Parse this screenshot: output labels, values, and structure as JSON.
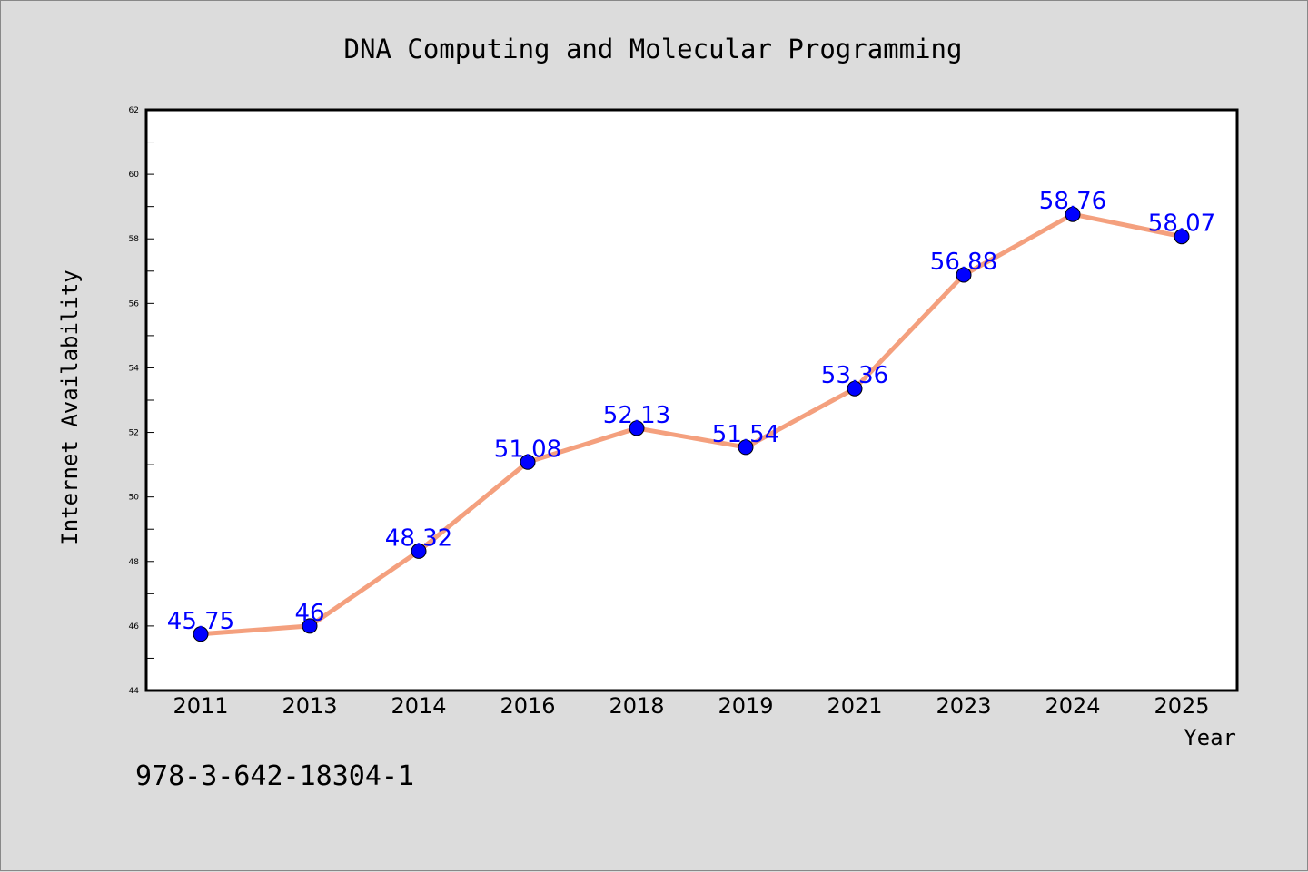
{
  "chart_data": {
    "type": "line",
    "title": "DNA Computing and Molecular Programming",
    "xlabel": "Year",
    "ylabel": "Internet Availability",
    "categories": [
      "2011",
      "2013",
      "2014",
      "2016",
      "2018",
      "2019",
      "2021",
      "2023",
      "2024",
      "2025"
    ],
    "series": [
      {
        "values": [
          45.75,
          46,
          48.32,
          51.08,
          52.13,
          51.54,
          53.36,
          56.88,
          58.76,
          58.07
        ],
        "data_labels": [
          "45.75",
          "46",
          "48.32",
          "51.08",
          "52.13",
          "51.54",
          "53.36",
          "56.88",
          "58.76",
          "58.07"
        ],
        "line_color": "#f4a07e",
        "marker_color": "#0000ff"
      }
    ],
    "ylim": [
      44,
      62
    ],
    "yticks": [
      "44",
      "46",
      "48",
      "50",
      "52",
      "54",
      "56",
      "58",
      "60",
      "62"
    ],
    "grid": false,
    "legend": "none",
    "colors": {
      "background": "#dcdcdc",
      "plot_area": "#ffffff",
      "data_label": "#0000ff"
    }
  },
  "annotation": "978-3-642-18304-1"
}
